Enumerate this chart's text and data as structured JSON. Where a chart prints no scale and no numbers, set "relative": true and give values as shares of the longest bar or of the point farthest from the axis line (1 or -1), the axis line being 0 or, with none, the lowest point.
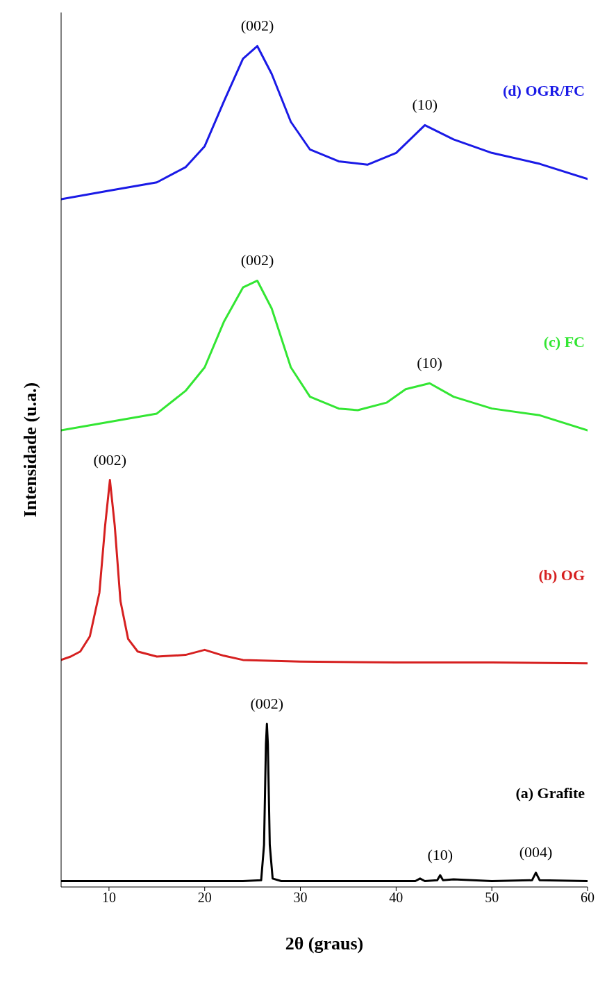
{
  "chart_data": {
    "type": "line",
    "relative": true,
    "xlabel": "2θ (graus)",
    "ylabel": "Intensidade (u.a.)",
    "xlim": [
      5,
      60
    ],
    "xticks": [
      10,
      20,
      30,
      40,
      50,
      60
    ],
    "grid": false,
    "legend": false,
    "marker": "none",
    "line_style": "solid",
    "series": [
      {
        "name": "(a) Grafite",
        "color": "#000000",
        "x": [
          5,
          10,
          15,
          20,
          24,
          25.9,
          26.2,
          26.4,
          26.5,
          26.6,
          26.8,
          27.1,
          28,
          35,
          42,
          42.5,
          43,
          44.3,
          44.6,
          44.9,
          46,
          50,
          54.2,
          54.6,
          55,
          60
        ],
        "values": [
          0.007,
          0.007,
          0.007,
          0.007,
          0.007,
          0.008,
          0.05,
          0.17,
          0.194,
          0.17,
          0.05,
          0.01,
          0.007,
          0.007,
          0.007,
          0.01,
          0.007,
          0.008,
          0.014,
          0.008,
          0.009,
          0.007,
          0.008,
          0.017,
          0.008,
          0.007
        ]
      },
      {
        "name": "(b) OG",
        "color": "#d62020",
        "x": [
          5,
          6,
          7,
          8,
          9,
          9.6,
          10.1,
          10.6,
          11.2,
          12,
          13,
          15,
          18,
          20,
          22,
          24,
          30,
          40,
          50,
          60
        ],
        "values": [
          0.27,
          0.274,
          0.28,
          0.298,
          0.35,
          0.43,
          0.484,
          0.43,
          0.34,
          0.295,
          0.28,
          0.274,
          0.276,
          0.282,
          0.275,
          0.27,
          0.268,
          0.267,
          0.267,
          0.266
        ]
      },
      {
        "name": "(c) FC",
        "color": "#33e633",
        "x": [
          5,
          10,
          15,
          18,
          20,
          22,
          24,
          25.5,
          27,
          29,
          31,
          34,
          36,
          39,
          41,
          43.5,
          46,
          50,
          55,
          60
        ],
        "values": [
          0.543,
          0.553,
          0.563,
          0.59,
          0.618,
          0.672,
          0.713,
          0.721,
          0.688,
          0.618,
          0.583,
          0.569,
          0.567,
          0.576,
          0.592,
          0.599,
          0.583,
          0.569,
          0.561,
          0.543
        ]
      },
      {
        "name": "(d) OGR/FC",
        "color": "#1a1ae6",
        "x": [
          5,
          10,
          15,
          18,
          20,
          22,
          24,
          25.5,
          27,
          29,
          31,
          34,
          37,
          40,
          43,
          46,
          50,
          55,
          60
        ],
        "values": [
          0.818,
          0.828,
          0.838,
          0.856,
          0.881,
          0.934,
          0.985,
          1.0,
          0.967,
          0.91,
          0.877,
          0.863,
          0.859,
          0.873,
          0.906,
          0.889,
          0.873,
          0.86,
          0.842
        ]
      }
    ],
    "annotations": [
      {
        "text": "(002)",
        "x": 25.5,
        "y": 1.0
      },
      {
        "text": "(10)",
        "x": 43,
        "y": 0.906
      },
      {
        "text": "(002)",
        "x": 25.5,
        "y": 0.721
      },
      {
        "text": "(10)",
        "x": 43.5,
        "y": 0.599
      },
      {
        "text": "(002)",
        "x": 10.1,
        "y": 0.484
      },
      {
        "text": "(002)",
        "x": 26.5,
        "y": 0.194
      },
      {
        "text": "(10)",
        "x": 44.6,
        "y": 0.014
      },
      {
        "text": "(004)",
        "x": 54.6,
        "y": 0.017
      }
    ]
  }
}
